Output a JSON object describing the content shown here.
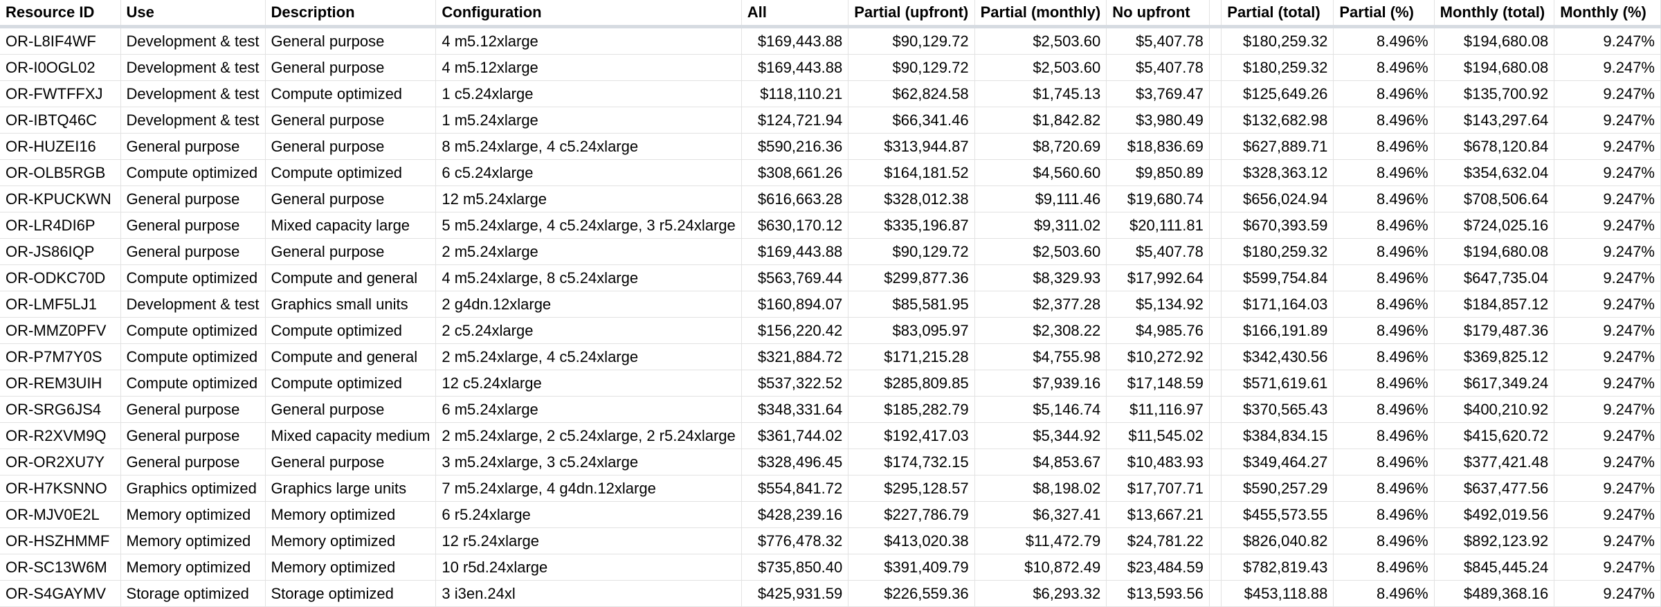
{
  "columns": [
    "Resource ID",
    "Use",
    "Description",
    "Configuration",
    "All",
    "Partial (upfront)",
    "Partial (monthly)",
    "No upfront",
    "",
    "Partial (total)",
    "Partial (%)",
    "Monthly (total)",
    "Monthly (%)"
  ],
  "rows": [
    [
      "OR-L8IF4WF",
      "Development & test",
      "General purpose",
      "4 m5.12xlarge",
      "$169,443.88",
      "$90,129.72",
      "$2,503.60",
      "$5,407.78",
      "",
      "$180,259.32",
      "8.496%",
      "$194,680.08",
      "9.247%"
    ],
    [
      "OR-I0OGL02",
      "Development & test",
      "General purpose",
      "4 m5.12xlarge",
      "$169,443.88",
      "$90,129.72",
      "$2,503.60",
      "$5,407.78",
      "",
      "$180,259.32",
      "8.496%",
      "$194,680.08",
      "9.247%"
    ],
    [
      "OR-FWTFFXJ",
      "Development & test",
      "Compute optimized",
      "1 c5.24xlarge",
      "$118,110.21",
      "$62,824.58",
      "$1,745.13",
      "$3,769.47",
      "",
      "$125,649.26",
      "8.496%",
      "$135,700.92",
      "9.247%"
    ],
    [
      "OR-IBTQ46C",
      "Development & test",
      "General purpose",
      "1 m5.24xlarge",
      "$124,721.94",
      "$66,341.46",
      "$1,842.82",
      "$3,980.49",
      "",
      "$132,682.98",
      "8.496%",
      "$143,297.64",
      "9.247%"
    ],
    [
      "OR-HUZEI16",
      "General purpose",
      "General purpose",
      "8 m5.24xlarge, 4 c5.24xlarge",
      "$590,216.36",
      "$313,944.87",
      "$8,720.69",
      "$18,836.69",
      "",
      "$627,889.71",
      "8.496%",
      "$678,120.84",
      "9.247%"
    ],
    [
      "OR-OLB5RGB",
      "Compute optimized",
      "Compute optimized",
      "6 c5.24xlarge",
      "$308,661.26",
      "$164,181.52",
      "$4,560.60",
      "$9,850.89",
      "",
      "$328,363.12",
      "8.496%",
      "$354,632.04",
      "9.247%"
    ],
    [
      "OR-KPUCKWN",
      "General purpose",
      "General purpose",
      "12 m5.24xlarge",
      "$616,663.28",
      "$328,012.38",
      "$9,111.46",
      "$19,680.74",
      "",
      "$656,024.94",
      "8.496%",
      "$708,506.64",
      "9.247%"
    ],
    [
      "OR-LR4DI6P",
      "General purpose",
      "Mixed capacity large",
      "5 m5.24xlarge, 4 c5.24xlarge, 3 r5.24xlarge",
      "$630,170.12",
      "$335,196.87",
      "$9,311.02",
      "$20,111.81",
      "",
      "$670,393.59",
      "8.496%",
      "$724,025.16",
      "9.247%"
    ],
    [
      "OR-JS86IQP",
      "General purpose",
      "General purpose",
      "2 m5.24xlarge",
      "$169,443.88",
      "$90,129.72",
      "$2,503.60",
      "$5,407.78",
      "",
      "$180,259.32",
      "8.496%",
      "$194,680.08",
      "9.247%"
    ],
    [
      "OR-ODKC70D",
      "Compute optimized",
      "Compute and general",
      "4 m5.24xlarge, 8 c5.24xlarge",
      "$563,769.44",
      "$299,877.36",
      "$8,329.93",
      "$17,992.64",
      "",
      "$599,754.84",
      "8.496%",
      "$647,735.04",
      "9.247%"
    ],
    [
      "OR-LMF5LJ1",
      "Development & test",
      "Graphics small units",
      "2 g4dn.12xlarge",
      "$160,894.07",
      "$85,581.95",
      "$2,377.28",
      "$5,134.92",
      "",
      "$171,164.03",
      "8.496%",
      "$184,857.12",
      "9.247%"
    ],
    [
      "OR-MMZ0PFV",
      "Compute optimized",
      "Compute optimized",
      "2 c5.24xlarge",
      "$156,220.42",
      "$83,095.97",
      "$2,308.22",
      "$4,985.76",
      "",
      "$166,191.89",
      "8.496%",
      "$179,487.36",
      "9.247%"
    ],
    [
      "OR-P7M7Y0S",
      "Compute optimized",
      "Compute and general",
      "2 m5.24xlarge, 4 c5.24xlarge",
      "$321,884.72",
      "$171,215.28",
      "$4,755.98",
      "$10,272.92",
      "",
      "$342,430.56",
      "8.496%",
      "$369,825.12",
      "9.247%"
    ],
    [
      "OR-REM3UIH",
      "Compute optimized",
      "Compute optimized",
      "12 c5.24xlarge",
      "$537,322.52",
      "$285,809.85",
      "$7,939.16",
      "$17,148.59",
      "",
      "$571,619.61",
      "8.496%",
      "$617,349.24",
      "9.247%"
    ],
    [
      "OR-SRG6JS4",
      "General purpose",
      "General purpose",
      "6 m5.24xlarge",
      "$348,331.64",
      "$185,282.79",
      "$5,146.74",
      "$11,116.97",
      "",
      "$370,565.43",
      "8.496%",
      "$400,210.92",
      "9.247%"
    ],
    [
      "OR-R2XVM9Q",
      "General purpose",
      "Mixed capacity medium",
      "2 m5.24xlarge, 2 c5.24xlarge, 2 r5.24xlarge",
      "$361,744.02",
      "$192,417.03",
      "$5,344.92",
      "$11,545.02",
      "",
      "$384,834.15",
      "8.496%",
      "$415,620.72",
      "9.247%"
    ],
    [
      "OR-OR2XU7Y",
      "General purpose",
      "General purpose",
      "3 m5.24xlarge, 3 c5.24xlarge",
      "$328,496.45",
      "$174,732.15",
      "$4,853.67",
      "$10,483.93",
      "",
      "$349,464.27",
      "8.496%",
      "$377,421.48",
      "9.247%"
    ],
    [
      "OR-H7KSNNO",
      "Graphics optimized",
      "Graphics large units",
      "7 m5.24xlarge, 4 g4dn.12xlarge",
      "$554,841.72",
      "$295,128.57",
      "$8,198.02",
      "$17,707.71",
      "",
      "$590,257.29",
      "8.496%",
      "$637,477.56",
      "9.247%"
    ],
    [
      "OR-MJV0E2L",
      "Memory optimized",
      "Memory optimized",
      "6 r5.24xlarge",
      "$428,239.16",
      "$227,786.79",
      "$6,327.41",
      "$13,667.21",
      "",
      "$455,573.55",
      "8.496%",
      "$492,019.56",
      "9.247%"
    ],
    [
      "OR-HSZHMMF",
      "Memory optimized",
      "Memory optimized",
      "12 r5.24xlarge",
      "$776,478.32",
      "$413,020.38",
      "$11,472.79",
      "$24,781.22",
      "",
      "$826,040.82",
      "8.496%",
      "$892,123.92",
      "9.247%"
    ],
    [
      "OR-SC13W6M",
      "Memory optimized",
      "Memory optimized",
      "10 r5d.24xlarge",
      "$735,850.40",
      "$391,409.79",
      "$10,872.49",
      "$23,484.59",
      "",
      "$782,819.43",
      "8.496%",
      "$845,445.24",
      "9.247%"
    ],
    [
      "OR-S4GAYMV",
      "Storage optimized",
      "Storage optimized",
      "3 i3en.24xl",
      "$425,931.59",
      "$226,559.36",
      "$6,293.32",
      "$13,593.56",
      "",
      "$453,118.88",
      "8.496%",
      "$489,368.16",
      "9.247%"
    ]
  ]
}
